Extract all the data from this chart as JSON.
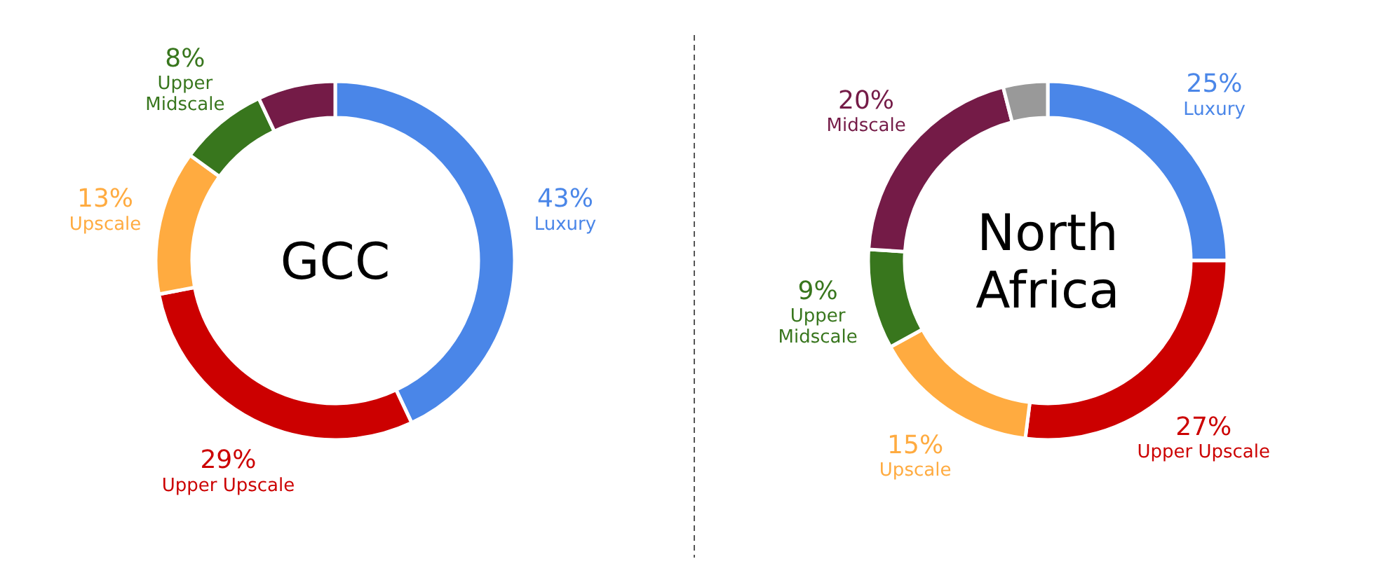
{
  "chart_data": [
    {
      "type": "donut",
      "title": "GCC",
      "categories": [
        "Luxury",
        "Upper Upscale",
        "Upscale",
        "Upper Midscale",
        null
      ],
      "values": [
        43,
        29,
        13,
        8,
        7
      ],
      "colors": [
        "#4a86e8",
        "#cc0000",
        "#ffab40",
        "#38761d",
        "#741b47"
      ],
      "value_labels": [
        "43%",
        "29%",
        "13%",
        "8%",
        null
      ]
    },
    {
      "type": "donut",
      "title": "North Africa",
      "categories": [
        "Luxury",
        "Upper Upscale",
        "Upscale",
        "Upper Midscale",
        "Midscale",
        null
      ],
      "values": [
        25,
        27,
        15,
        9,
        20,
        4
      ],
      "colors": [
        "#4a86e8",
        "#cc0000",
        "#ffab40",
        "#38761d",
        "#741b47",
        "#999999"
      ],
      "value_labels": [
        "25%",
        "27%",
        "15%",
        "9%",
        "20%",
        null
      ]
    }
  ]
}
